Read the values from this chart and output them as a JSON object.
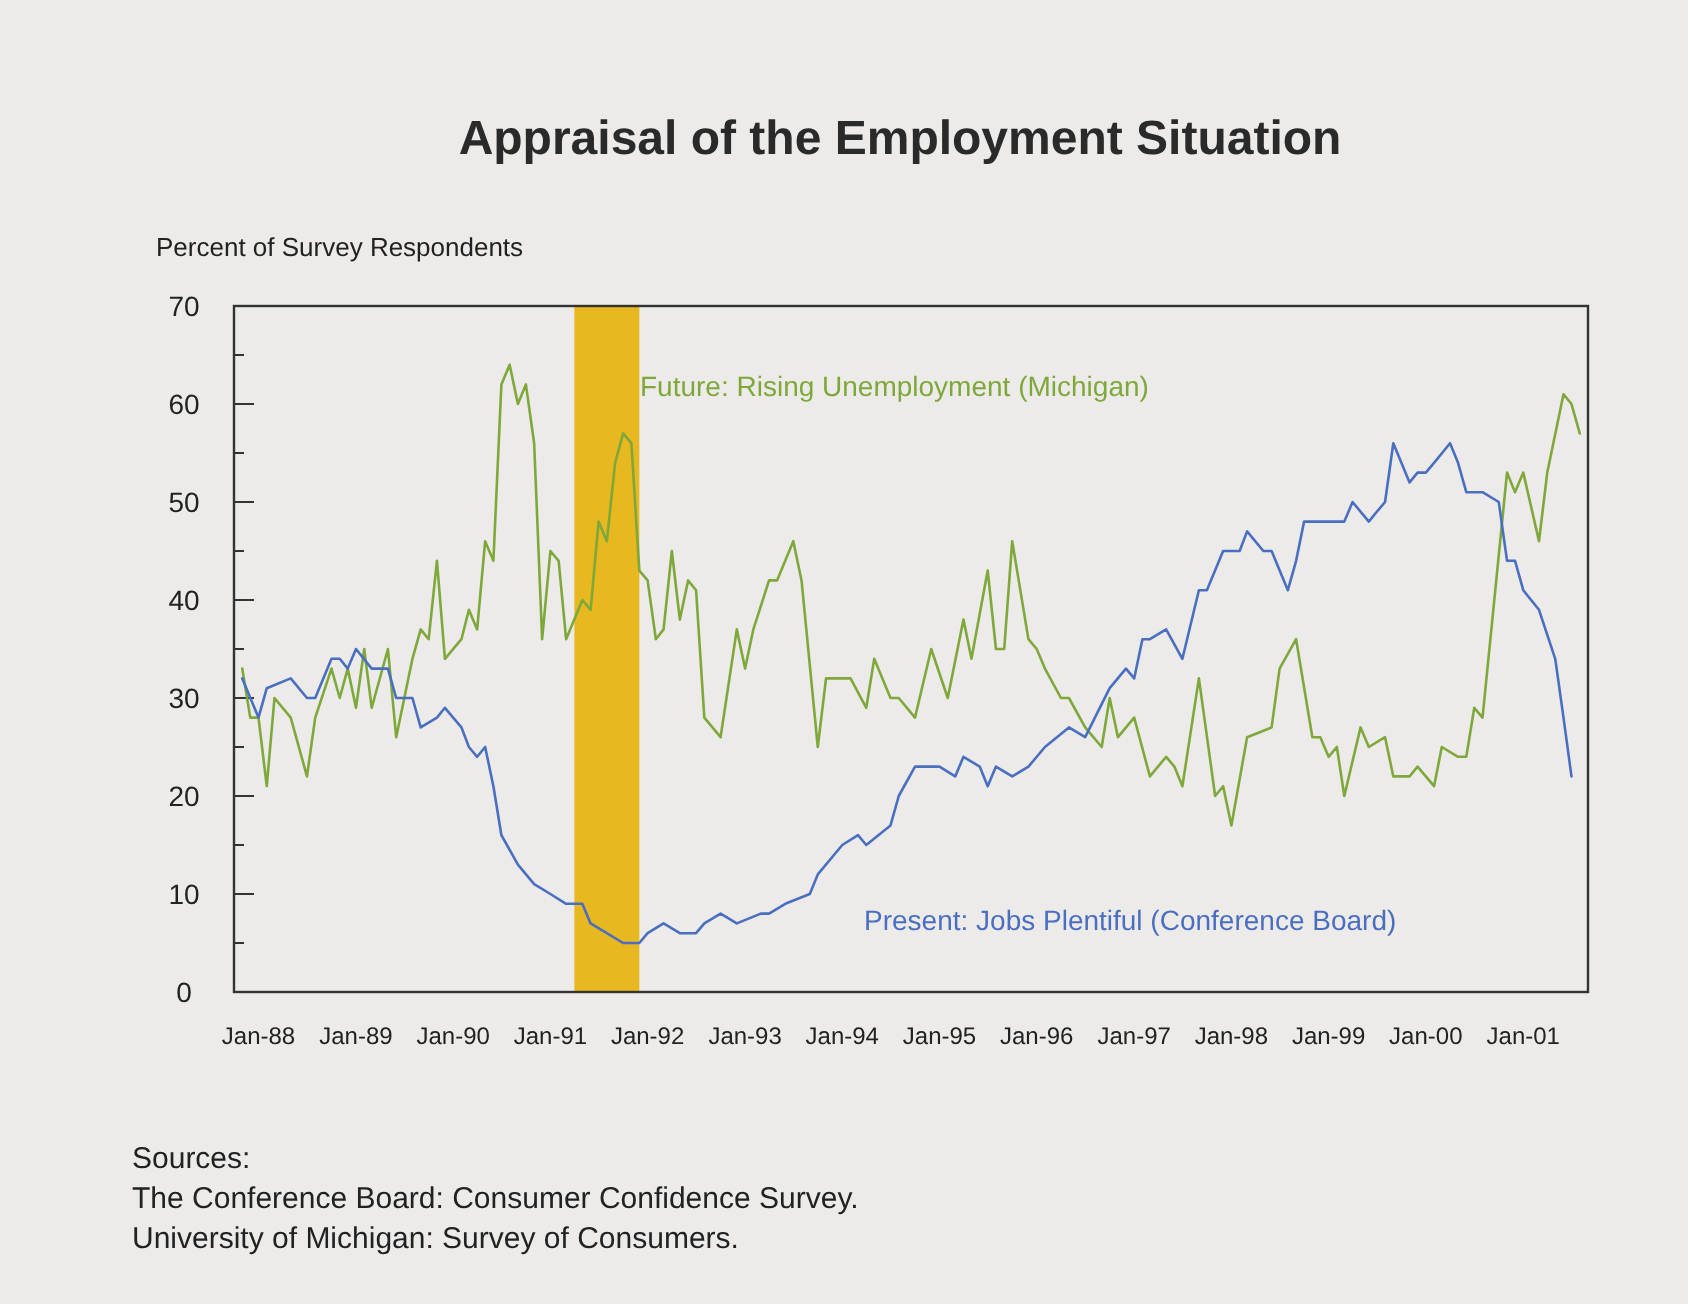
{
  "chart_data": {
    "type": "line",
    "title": "Appraisal of the Employment Situation",
    "ylabel": "Percent of Survey Respondents",
    "xlim": [
      "1987-10",
      "2001-09"
    ],
    "xticks": [
      {
        "value": "1988-01",
        "label": "Jan-88"
      },
      {
        "value": "1989-01",
        "label": "Jan-89"
      },
      {
        "value": "1990-01",
        "label": "Jan-90"
      },
      {
        "value": "1991-01",
        "label": "Jan-91"
      },
      {
        "value": "1992-01",
        "label": "Jan-92"
      },
      {
        "value": "1993-01",
        "label": "Jan-93"
      },
      {
        "value": "1994-01",
        "label": "Jan-94"
      },
      {
        "value": "1995-01",
        "label": "Jan-95"
      },
      {
        "value": "1996-01",
        "label": "Jan-96"
      },
      {
        "value": "1997-01",
        "label": "Jan-97"
      },
      {
        "value": "1998-01",
        "label": "Jan-98"
      },
      {
        "value": "1999-01",
        "label": "Jan-99"
      },
      {
        "value": "2000-01",
        "label": "Jan-00"
      },
      {
        "value": "2001-01",
        "label": "Jan-01"
      }
    ],
    "ylim": [
      0,
      70
    ],
    "yticks": [
      0,
      {
        "value": 5,
        "label": null
      },
      10,
      {
        "value": 15,
        "label": null
      },
      20,
      {
        "value": 25,
        "label": null
      },
      30,
      {
        "value": 35,
        "label": null
      },
      40,
      {
        "value": 45,
        "label": null
      },
      50,
      {
        "value": 55,
        "label": null
      },
      60,
      {
        "value": 65,
        "label": null
      },
      70
    ],
    "grid": false,
    "legend": false,
    "marker": "none",
    "line_style": "solid",
    "bands": [
      {
        "axis": "x",
        "from": "1991-04",
        "to": "1991-12",
        "color": "#e8b820"
      }
    ],
    "series": [
      {
        "name": "Future: Rising Unemployment (Michigan)",
        "color": "#7fa83a",
        "x": [
          "1987-11",
          "1987-12",
          "1988-01",
          "1988-02",
          "1988-03",
          "1988-05",
          "1988-07",
          "1988-08",
          "1988-10",
          "1988-11",
          "1988-12",
          "1989-01",
          "1989-02",
          "1989-03",
          "1989-05",
          "1989-06",
          "1989-08",
          "1989-09",
          "1989-10",
          "1989-11",
          "1989-12",
          "1990-02",
          "1990-03",
          "1990-04",
          "1990-05",
          "1990-06",
          "1990-07",
          "1990-08",
          "1990-09",
          "1990-10",
          "1990-11",
          "1990-12",
          "1991-01",
          "1991-02",
          "1991-03",
          "1991-05",
          "1991-06",
          "1991-07",
          "1991-08",
          "1991-09",
          "1991-10",
          "1991-11",
          "1991-12",
          "1992-01",
          "1992-02",
          "1992-03",
          "1992-04",
          "1992-05",
          "1992-06",
          "1992-07",
          "1992-08",
          "1992-10",
          "1992-12",
          "1993-01",
          "1993-02",
          "1993-04",
          "1993-05",
          "1993-07",
          "1993-08",
          "1993-10",
          "1993-11",
          "1994-02",
          "1994-04",
          "1994-05",
          "1994-07",
          "1994-08",
          "1994-10",
          "1994-12",
          "1995-02",
          "1995-04",
          "1995-05",
          "1995-07",
          "1995-08",
          "1995-09",
          "1995-10",
          "1995-12",
          "1996-01",
          "1996-02",
          "1996-04",
          "1996-05",
          "1996-07",
          "1996-09",
          "1996-10",
          "1996-11",
          "1997-01",
          "1997-03",
          "1997-05",
          "1997-06",
          "1997-07",
          "1997-09",
          "1997-11",
          "1997-12",
          "1998-01",
          "1998-03",
          "1998-06",
          "1998-07",
          "1998-09",
          "1998-11",
          "1998-12",
          "1999-01",
          "1999-02",
          "1999-03",
          "1999-05",
          "1999-06",
          "1999-08",
          "1999-09",
          "1999-11",
          "1999-12",
          "2000-02",
          "2000-03",
          "2000-05",
          "2000-06",
          "2000-07",
          "2000-08",
          "2000-11",
          "2000-12",
          "2001-01",
          "2001-03",
          "2001-04",
          "2001-06",
          "2001-07",
          "2001-08"
        ],
        "values": [
          33,
          28,
          28,
          21,
          30,
          28,
          22,
          28,
          33,
          30,
          33,
          29,
          35,
          29,
          35,
          26,
          34,
          37,
          36,
          44,
          34,
          36,
          39,
          37,
          46,
          44,
          62,
          64,
          60,
          62,
          56,
          36,
          45,
          44,
          36,
          40,
          39,
          48,
          46,
          54,
          57,
          56,
          43,
          42,
          36,
          37,
          45,
          38,
          42,
          41,
          28,
          26,
          37,
          33,
          37,
          42,
          42,
          46,
          42,
          25,
          32,
          32,
          29,
          34,
          30,
          30,
          28,
          35,
          30,
          38,
          34,
          43,
          35,
          35,
          46,
          36,
          35,
          33,
          30,
          30,
          27,
          25,
          30,
          26,
          28,
          22,
          24,
          23,
          21,
          32,
          20,
          21,
          17,
          26,
          27,
          33,
          36,
          26,
          26,
          24,
          25,
          20,
          27,
          25,
          26,
          22,
          22,
          23,
          21,
          25,
          24,
          24,
          29,
          28,
          53,
          51,
          53,
          46,
          53,
          61,
          60,
          57
        ]
      },
      {
        "name": "Present: Jobs Plentiful (Conference Board)",
        "color": "#4a6fc0",
        "x": [
          "1987-11",
          "1988-01",
          "1988-02",
          "1988-05",
          "1988-07",
          "1988-08",
          "1988-10",
          "1988-11",
          "1988-12",
          "1989-01",
          "1989-03",
          "1989-05",
          "1989-06",
          "1989-08",
          "1989-09",
          "1989-11",
          "1989-12",
          "1990-02",
          "1990-03",
          "1990-04",
          "1990-05",
          "1990-06",
          "1990-07",
          "1990-09",
          "1990-11",
          "1991-01",
          "1991-03",
          "1991-05",
          "1991-06",
          "1991-08",
          "1991-10",
          "1991-12",
          "1992-01",
          "1992-03",
          "1992-05",
          "1992-07",
          "1992-08",
          "1992-10",
          "1992-12",
          "1993-03",
          "1993-04",
          "1993-06",
          "1993-09",
          "1993-10",
          "1994-01",
          "1994-03",
          "1994-04",
          "1994-07",
          "1994-08",
          "1994-10",
          "1994-12",
          "1995-01",
          "1995-03",
          "1995-04",
          "1995-06",
          "1995-07",
          "1995-08",
          "1995-10",
          "1995-12",
          "1996-02",
          "1996-05",
          "1996-07",
          "1996-10",
          "1996-12",
          "1997-01",
          "1997-02",
          "1997-03",
          "1997-05",
          "1997-07",
          "1997-09",
          "1997-10",
          "1997-12",
          "1998-02",
          "1998-03",
          "1998-05",
          "1998-06",
          "1998-08",
          "1998-09",
          "1998-10",
          "1998-11",
          "1999-01",
          "1999-03",
          "1999-04",
          "1999-06",
          "1999-07",
          "1999-08",
          "1999-09",
          "1999-11",
          "1999-12",
          "2000-01",
          "2000-02",
          "2000-04",
          "2000-05",
          "2000-06",
          "2000-08",
          "2000-10",
          "2000-11",
          "2000-12",
          "2001-01",
          "2001-03",
          "2001-05",
          "2001-06",
          "2001-07"
        ],
        "values": [
          32,
          28,
          31,
          32,
          30,
          30,
          34,
          34,
          33,
          35,
          33,
          33,
          30,
          30,
          27,
          28,
          29,
          27,
          25,
          24,
          25,
          21,
          16,
          13,
          11,
          10,
          9,
          9,
          7,
          6,
          5,
          5,
          6,
          7,
          6,
          6,
          7,
          8,
          7,
          8,
          8,
          9,
          10,
          12,
          15,
          16,
          15,
          17,
          20,
          23,
          23,
          23,
          22,
          24,
          23,
          21,
          23,
          22,
          23,
          25,
          27,
          26,
          31,
          33,
          32,
          36,
          36,
          37,
          34,
          41,
          41,
          45,
          45,
          47,
          45,
          45,
          41,
          44,
          48,
          48,
          48,
          48,
          50,
          48,
          49,
          50,
          56,
          52,
          53,
          53,
          54,
          56,
          54,
          51,
          51,
          50,
          44,
          44,
          41,
          39,
          34,
          28,
          22
        ]
      }
    ],
    "annotations": [
      "Sources:",
      "The Conference Board: Consumer Confidence Survey.",
      "University of Michigan: Survey of Consumers."
    ]
  }
}
